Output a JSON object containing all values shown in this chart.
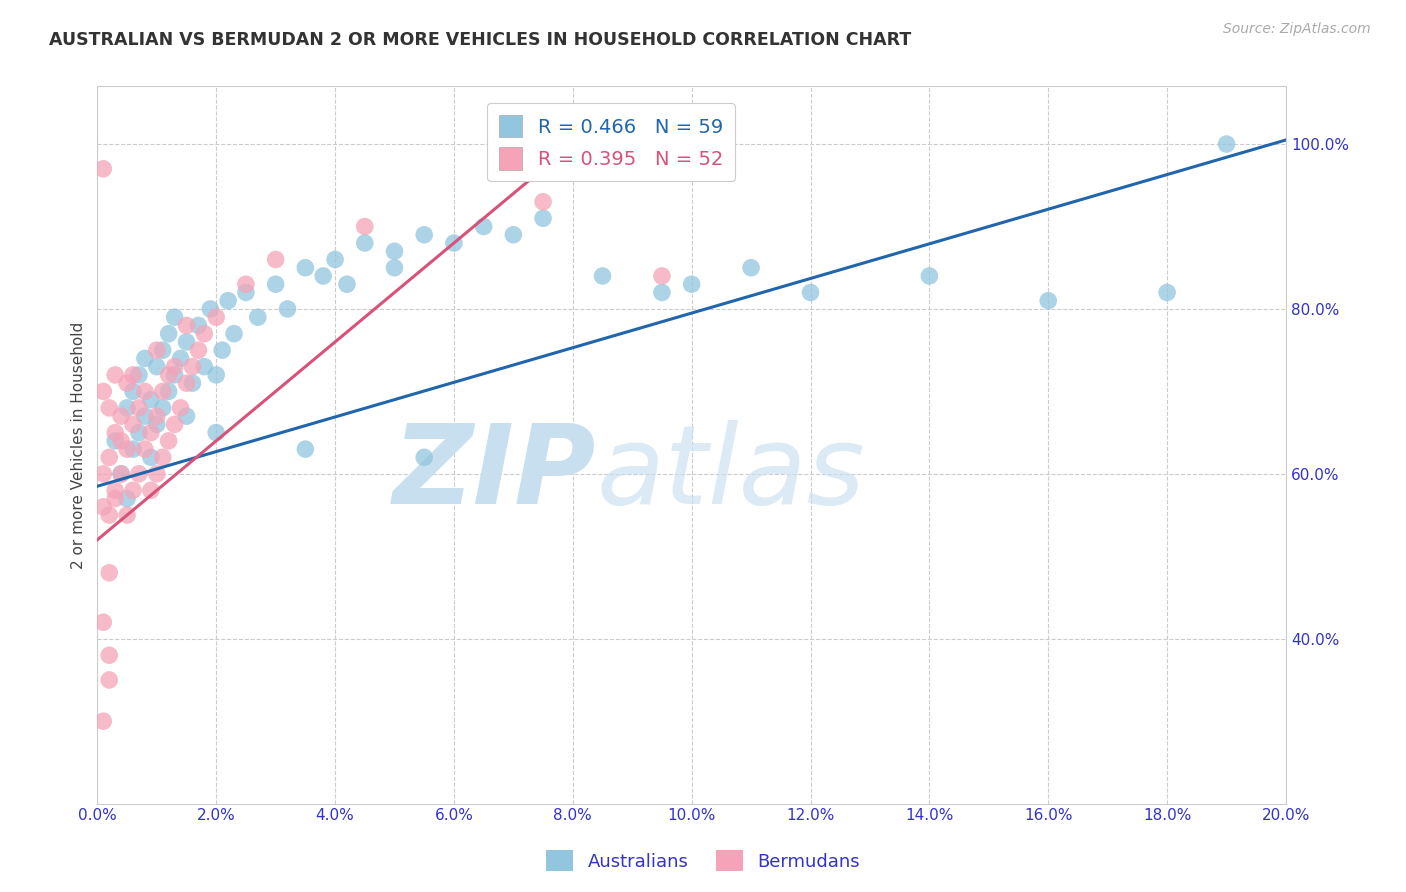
{
  "title": "AUSTRALIAN VS BERMUDAN 2 OR MORE VEHICLES IN HOUSEHOLD CORRELATION CHART",
  "source": "Source: ZipAtlas.com",
  "ylabel": "2 or more Vehicles in Household",
  "x_min": 0.0,
  "x_max": 20.0,
  "y_min": 20.0,
  "y_max": 107.0,
  "x_ticks": [
    0.0,
    2.0,
    4.0,
    6.0,
    8.0,
    10.0,
    12.0,
    14.0,
    16.0,
    18.0,
    20.0
  ],
  "y_ticks": [
    40.0,
    60.0,
    80.0,
    100.0
  ],
  "x_tick_labels": [
    "0.0%",
    "2.0%",
    "4.0%",
    "6.0%",
    "8.0%",
    "10.0%",
    "12.0%",
    "14.0%",
    "16.0%",
    "18.0%",
    "20.0%"
  ],
  "y_tick_labels": [
    "40.0%",
    "60.0%",
    "80.0%",
    "100.0%"
  ],
  "right_y_ticks": [
    40.0,
    60.0,
    80.0,
    100.0
  ],
  "right_y_tick_labels": [
    "40.0%",
    "60.0%",
    "80.0%",
    "100.0%"
  ],
  "blue_color": "#92c5de",
  "pink_color": "#f4a3b8",
  "blue_line_color": "#2166ac",
  "pink_line_color": "#d6537a",
  "axis_color": "#3333cc",
  "grid_color": "#cccccc",
  "background_color": "#ffffff",
  "watermark_zip": "ZIP",
  "watermark_atlas": "atlas",
  "watermark_color": "#c8dff0",
  "legend_blue_label": "R = 0.466   N = 59",
  "legend_pink_label": "R = 0.395   N = 52",
  "blue_trend_x": [
    0.0,
    20.0
  ],
  "blue_trend_y": [
    58.5,
    100.5
  ],
  "pink_trend_x": [
    0.0,
    8.5
  ],
  "pink_trend_y": [
    52.0,
    103.0
  ],
  "aus_x": [
    0.3,
    0.4,
    0.5,
    0.5,
    0.6,
    0.6,
    0.7,
    0.7,
    0.8,
    0.8,
    0.9,
    0.9,
    1.0,
    1.0,
    1.1,
    1.1,
    1.2,
    1.2,
    1.3,
    1.3,
    1.4,
    1.5,
    1.5,
    1.6,
    1.7,
    1.8,
    1.9,
    2.0,
    2.0,
    2.1,
    2.2,
    2.3,
    2.5,
    2.7,
    3.0,
    3.2,
    3.5,
    3.8,
    4.0,
    4.2,
    4.5,
    5.0,
    5.0,
    5.5,
    6.0,
    6.5,
    7.0,
    7.5,
    8.5,
    9.5,
    10.0,
    11.0,
    12.0,
    14.0,
    16.0,
    18.0,
    19.0,
    3.5,
    5.5
  ],
  "aus_y": [
    64,
    60,
    57,
    68,
    63,
    70,
    65,
    72,
    67,
    74,
    62,
    69,
    66,
    73,
    68,
    75,
    70,
    77,
    72,
    79,
    74,
    67,
    76,
    71,
    78,
    73,
    80,
    65,
    72,
    75,
    81,
    77,
    82,
    79,
    83,
    80,
    85,
    84,
    86,
    83,
    88,
    85,
    87,
    89,
    88,
    90,
    89,
    91,
    84,
    82,
    83,
    85,
    82,
    84,
    81,
    82,
    100,
    63,
    62
  ],
  "berm_x": [
    0.1,
    0.1,
    0.1,
    0.2,
    0.2,
    0.2,
    0.3,
    0.3,
    0.3,
    0.4,
    0.4,
    0.5,
    0.5,
    0.5,
    0.6,
    0.6,
    0.7,
    0.7,
    0.8,
    0.8,
    0.9,
    0.9,
    1.0,
    1.0,
    1.0,
    1.1,
    1.1,
    1.2,
    1.2,
    1.3,
    1.3,
    1.4,
    1.5,
    1.5,
    1.6,
    1.7,
    1.8,
    2.0,
    2.5,
    3.0,
    0.1,
    0.2,
    0.1,
    4.5,
    7.5,
    9.5,
    0.3,
    0.4,
    0.2,
    0.6,
    0.1,
    0.2
  ],
  "berm_y": [
    56,
    60,
    70,
    55,
    62,
    68,
    58,
    65,
    72,
    60,
    67,
    55,
    63,
    71,
    58,
    66,
    60,
    68,
    63,
    70,
    58,
    65,
    60,
    67,
    75,
    62,
    70,
    64,
    72,
    66,
    73,
    68,
    71,
    78,
    73,
    75,
    77,
    79,
    83,
    86,
    30,
    35,
    97,
    90,
    93,
    84,
    57,
    64,
    48,
    72,
    42,
    38
  ]
}
